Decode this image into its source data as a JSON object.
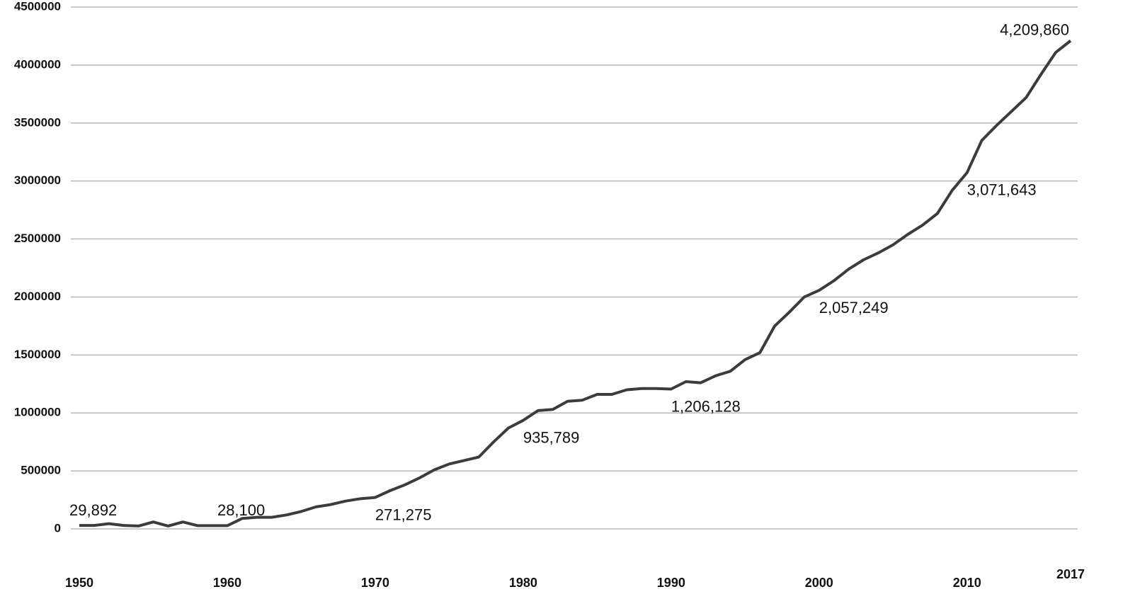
{
  "chart_data": {
    "type": "line",
    "color": "#3c3c3c",
    "grid": true,
    "x": [
      1950,
      1951,
      1952,
      1953,
      1954,
      1955,
      1956,
      1957,
      1958,
      1959,
      1960,
      1961,
      1962,
      1963,
      1964,
      1965,
      1966,
      1967,
      1968,
      1969,
      1970,
      1971,
      1972,
      1973,
      1974,
      1975,
      1976,
      1977,
      1978,
      1979,
      1980,
      1981,
      1982,
      1983,
      1984,
      1985,
      1986,
      1987,
      1988,
      1989,
      1990,
      1991,
      1992,
      1993,
      1994,
      1995,
      1996,
      1997,
      1998,
      1999,
      2000,
      2001,
      2002,
      2003,
      2004,
      2005,
      2006,
      2007,
      2008,
      2009,
      2010,
      2011,
      2012,
      2013,
      2014,
      2015,
      2016,
      2017
    ],
    "values": [
      29892,
      30000,
      45000,
      30000,
      25000,
      60000,
      25000,
      60000,
      28000,
      28000,
      28100,
      90000,
      100000,
      100000,
      120000,
      150000,
      190000,
      210000,
      240000,
      260000,
      271275,
      330000,
      380000,
      440000,
      510000,
      560000,
      590000,
      620000,
      750000,
      870000,
      935789,
      1020000,
      1030000,
      1100000,
      1110000,
      1160000,
      1160000,
      1200000,
      1210000,
      1210000,
      1206128,
      1270000,
      1260000,
      1320000,
      1360000,
      1460000,
      1520000,
      1750000,
      1870000,
      2000000,
      2057249,
      2140000,
      2240000,
      2320000,
      2380000,
      2450000,
      2540000,
      2620000,
      2720000,
      2920000,
      3071643,
      3350000,
      3480000,
      3600000,
      3720000,
      3920000,
      4110000,
      4209860
    ],
    "value_labels": [
      "29,892",
      null,
      null,
      null,
      null,
      null,
      null,
      null,
      null,
      null,
      "28,100",
      null,
      null,
      null,
      null,
      null,
      null,
      null,
      null,
      null,
      "271,275",
      null,
      null,
      null,
      null,
      null,
      null,
      null,
      null,
      null,
      "935,789",
      null,
      null,
      null,
      null,
      null,
      null,
      null,
      null,
      null,
      "1,206,128",
      null,
      null,
      null,
      null,
      null,
      null,
      null,
      null,
      null,
      "2,057,249",
      null,
      null,
      null,
      null,
      null,
      null,
      null,
      null,
      null,
      "3,071,643",
      null,
      null,
      null,
      null,
      null,
      null,
      "4,209,860"
    ],
    "xlim": [
      1950,
      2017
    ],
    "xticks": [
      1950,
      1960,
      1970,
      1980,
      1990,
      2000,
      2010,
      2017
    ],
    "ylim": [
      0,
      4500000
    ],
    "yticks": [
      0,
      500000,
      1000000,
      1500000,
      2000000,
      2500000,
      3000000,
      3500000,
      4000000,
      4500000
    ]
  }
}
